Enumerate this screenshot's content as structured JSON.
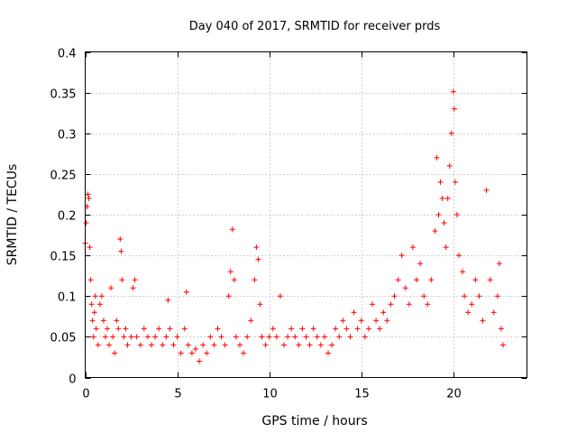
{
  "chart_data": {
    "type": "scatter",
    "title": "Day 040 of 2017, SRMTID for receiver prds",
    "xlabel": "GPS time / hours",
    "ylabel": "SRMTID / TECUs",
    "xlim": [
      0,
      24
    ],
    "ylim": [
      0,
      0.4
    ],
    "x_ticks": [
      0,
      5,
      10,
      15,
      20
    ],
    "x_tick_labels": [
      "0",
      "5",
      "10",
      "15",
      "20"
    ],
    "y_ticks": [
      0,
      0.05,
      0.1,
      0.15,
      0.2,
      0.25,
      0.3,
      0.35,
      0.4
    ],
    "y_tick_labels": [
      "0",
      "0.05",
      "0.1",
      "0.15",
      "0.2",
      "0.25",
      "0.3",
      "0.35",
      "0.4"
    ],
    "grid": true,
    "marker": "+",
    "color": "#ff0000",
    "series": [
      {
        "name": "SRMTID",
        "points": [
          [
            0.0,
            0.165
          ],
          [
            0.05,
            0.19
          ],
          [
            0.1,
            0.21
          ],
          [
            0.15,
            0.225
          ],
          [
            0.2,
            0.22
          ],
          [
            0.25,
            0.16
          ],
          [
            0.3,
            0.12
          ],
          [
            0.35,
            0.09
          ],
          [
            0.4,
            0.07
          ],
          [
            0.45,
            0.05
          ],
          [
            0.5,
            0.08
          ],
          [
            0.55,
            0.1
          ],
          [
            0.6,
            0.06
          ],
          [
            0.7,
            0.04
          ],
          [
            0.8,
            0.09
          ],
          [
            0.9,
            0.1
          ],
          [
            1.0,
            0.07
          ],
          [
            1.1,
            0.05
          ],
          [
            1.2,
            0.06
          ],
          [
            1.3,
            0.04
          ],
          [
            1.4,
            0.11
          ],
          [
            1.5,
            0.05
          ],
          [
            1.6,
            0.03
          ],
          [
            1.7,
            0.07
          ],
          [
            1.8,
            0.06
          ],
          [
            1.9,
            0.17
          ],
          [
            1.95,
            0.155
          ],
          [
            2.0,
            0.12
          ],
          [
            2.1,
            0.05
          ],
          [
            2.2,
            0.06
          ],
          [
            2.3,
            0.04
          ],
          [
            2.5,
            0.05
          ],
          [
            2.6,
            0.11
          ],
          [
            2.7,
            0.12
          ],
          [
            2.8,
            0.05
          ],
          [
            3.0,
            0.04
          ],
          [
            3.2,
            0.06
          ],
          [
            3.4,
            0.05
          ],
          [
            3.6,
            0.04
          ],
          [
            3.8,
            0.05
          ],
          [
            4.0,
            0.06
          ],
          [
            4.2,
            0.04
          ],
          [
            4.4,
            0.05
          ],
          [
            4.5,
            0.095
          ],
          [
            4.6,
            0.06
          ],
          [
            4.8,
            0.04
          ],
          [
            5.0,
            0.05
          ],
          [
            5.2,
            0.03
          ],
          [
            5.4,
            0.06
          ],
          [
            5.5,
            0.105
          ],
          [
            5.6,
            0.04
          ],
          [
            5.8,
            0.03
          ],
          [
            6.0,
            0.035
          ],
          [
            6.2,
            0.02
          ],
          [
            6.4,
            0.04
          ],
          [
            6.6,
            0.03
          ],
          [
            6.8,
            0.05
          ],
          [
            7.0,
            0.04
          ],
          [
            7.2,
            0.06
          ],
          [
            7.4,
            0.05
          ],
          [
            7.6,
            0.04
          ],
          [
            7.8,
            0.1
          ],
          [
            7.9,
            0.13
          ],
          [
            8.0,
            0.182
          ],
          [
            8.1,
            0.12
          ],
          [
            8.2,
            0.05
          ],
          [
            8.4,
            0.04
          ],
          [
            8.6,
            0.03
          ],
          [
            8.8,
            0.05
          ],
          [
            9.0,
            0.07
          ],
          [
            9.2,
            0.12
          ],
          [
            9.3,
            0.16
          ],
          [
            9.4,
            0.145
          ],
          [
            9.5,
            0.09
          ],
          [
            9.6,
            0.05
          ],
          [
            9.8,
            0.04
          ],
          [
            10.0,
            0.05
          ],
          [
            10.2,
            0.06
          ],
          [
            10.4,
            0.05
          ],
          [
            10.6,
            0.1
          ],
          [
            10.8,
            0.04
          ],
          [
            11.0,
            0.05
          ],
          [
            11.2,
            0.06
          ],
          [
            11.4,
            0.05
          ],
          [
            11.6,
            0.04
          ],
          [
            11.8,
            0.06
          ],
          [
            12.0,
            0.05
          ],
          [
            12.2,
            0.04
          ],
          [
            12.4,
            0.06
          ],
          [
            12.6,
            0.05
          ],
          [
            12.8,
            0.04
          ],
          [
            13.0,
            0.05
          ],
          [
            13.2,
            0.03
          ],
          [
            13.4,
            0.04
          ],
          [
            13.6,
            0.06
          ],
          [
            13.8,
            0.05
          ],
          [
            14.0,
            0.07
          ],
          [
            14.2,
            0.06
          ],
          [
            14.4,
            0.05
          ],
          [
            14.6,
            0.08
          ],
          [
            14.8,
            0.06
          ],
          [
            15.0,
            0.07
          ],
          [
            15.2,
            0.05
          ],
          [
            15.4,
            0.06
          ],
          [
            15.6,
            0.09
          ],
          [
            15.8,
            0.07
          ],
          [
            16.0,
            0.06
          ],
          [
            16.2,
            0.08
          ],
          [
            16.4,
            0.07
          ],
          [
            16.6,
            0.09
          ],
          [
            16.8,
            0.1
          ],
          [
            17.0,
            0.12
          ],
          [
            17.2,
            0.15
          ],
          [
            17.4,
            0.11
          ],
          [
            17.6,
            0.09
          ],
          [
            17.8,
            0.16
          ],
          [
            18.0,
            0.12
          ],
          [
            18.2,
            0.14
          ],
          [
            18.4,
            0.1
          ],
          [
            18.6,
            0.09
          ],
          [
            18.8,
            0.12
          ],
          [
            19.0,
            0.18
          ],
          [
            19.1,
            0.27
          ],
          [
            19.2,
            0.2
          ],
          [
            19.3,
            0.24
          ],
          [
            19.4,
            0.22
          ],
          [
            19.5,
            0.19
          ],
          [
            19.6,
            0.16
          ],
          [
            19.7,
            0.22
          ],
          [
            19.8,
            0.26
          ],
          [
            19.9,
            0.3
          ],
          [
            20.0,
            0.351
          ],
          [
            20.05,
            0.33
          ],
          [
            20.1,
            0.24
          ],
          [
            20.2,
            0.2
          ],
          [
            20.3,
            0.15
          ],
          [
            20.5,
            0.13
          ],
          [
            20.6,
            0.1
          ],
          [
            20.8,
            0.08
          ],
          [
            21.0,
            0.09
          ],
          [
            21.2,
            0.12
          ],
          [
            21.4,
            0.1
          ],
          [
            21.6,
            0.07
          ],
          [
            21.8,
            0.23
          ],
          [
            22.0,
            0.12
          ],
          [
            22.2,
            0.08
          ],
          [
            22.4,
            0.1
          ],
          [
            22.5,
            0.14
          ],
          [
            22.6,
            0.06
          ],
          [
            22.7,
            0.04
          ]
        ]
      }
    ]
  }
}
